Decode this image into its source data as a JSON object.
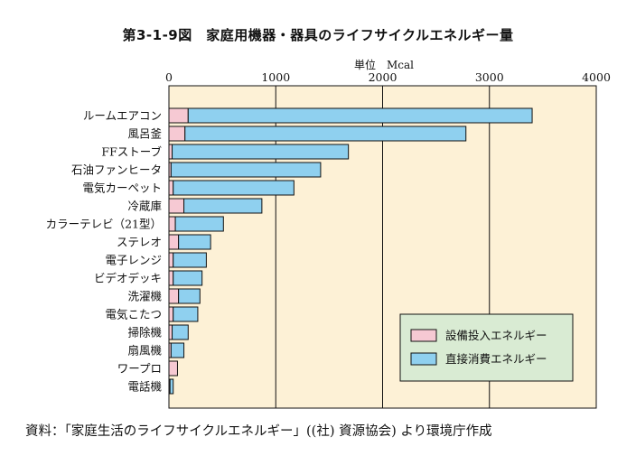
{
  "title": "第3-1-9図　家庭用機器・器具のライフサイクルエネルギー量",
  "unit_label": "単位　Mcal",
  "source": "資料：「家庭生活のライフサイクルエネルギー」((社) 資源協会) より環境庁作成",
  "chart_data": {
    "type": "bar",
    "orientation": "horizontal",
    "stacked": true,
    "title": "第3-1-9図　家庭用機器・器具のライフサイクルエネルギー量",
    "xlabel": "単位　Mcal",
    "xlim": [
      0,
      4000
    ],
    "xticks": [
      0,
      1000,
      2000,
      3000,
      4000
    ],
    "grid": true,
    "legend_position": "bottom-right",
    "categories": [
      "ルームエアコン",
      "風呂釜",
      "FFストーブ",
      "石油ファンヒータ",
      "電気カーペット",
      "冷蔵庫",
      "カラーテレビ（21型）",
      "ステレオ",
      "電子レンジ",
      "ビデオデッキ",
      "洗濯機",
      "電気こたつ",
      "掃除機",
      "扇風機",
      "ワープロ",
      "電話機"
    ],
    "series": [
      {
        "name": "設備投入エネルギー",
        "color": "#f6c9d3",
        "values": [
          180,
          150,
          30,
          20,
          40,
          140,
          60,
          90,
          40,
          40,
          90,
          40,
          30,
          20,
          80,
          10
        ]
      },
      {
        "name": "直接消費エネルギー",
        "color": "#8fd0ef",
        "values": [
          3220,
          2630,
          1650,
          1400,
          1130,
          730,
          450,
          300,
          310,
          270,
          200,
          230,
          150,
          120,
          0,
          30
        ]
      }
    ]
  },
  "colors": {
    "plot_background": "#fdf1d6",
    "legend_background": "#d9ebd3",
    "bar_outline": "#111111"
  }
}
